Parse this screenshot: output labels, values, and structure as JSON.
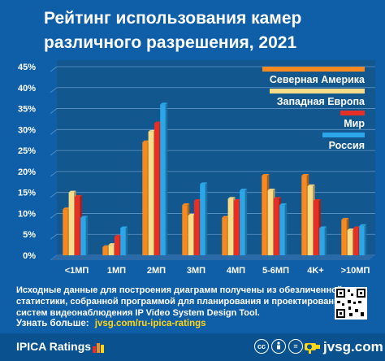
{
  "title": "Рейтинг использования камер различного разрешения, 2021",
  "chart_data": {
    "type": "bar",
    "title": "Рейтинг использования камер различного разрешения, 2021",
    "categories": [
      "<1МП",
      "1МП",
      "2МП",
      "3МП",
      "4МП",
      "5-6МП",
      "4K+",
      ">10МП"
    ],
    "series": [
      {
        "name": "Северная Америка",
        "color": "#f7891f",
        "values": [
          11,
          2,
          27,
          12,
          9,
          19,
          19,
          8.5
        ]
      },
      {
        "name": "Западная Европа",
        "color": "#f8dc88",
        "values": [
          15,
          2.5,
          29.5,
          9.5,
          13.5,
          15.5,
          16.5,
          6
        ]
      },
      {
        "name": "Мир",
        "color": "#e63025",
        "values": [
          14,
          4.5,
          31.5,
          13,
          13,
          13.5,
          13,
          6.5
        ]
      },
      {
        "name": "Россия",
        "color": "#2ba6e8",
        "values": [
          9,
          6.5,
          36,
          17,
          15.5,
          12,
          6.5,
          7
        ]
      }
    ],
    "ylim": [
      0,
      45
    ],
    "y_ticks": [
      "0%",
      "5%",
      "10%",
      "15%",
      "20%",
      "25%",
      "30%",
      "35%",
      "40%",
      "45%"
    ],
    "grid": true,
    "legend": "top-right"
  },
  "note": "Исходные данные для построения диаграмм получены из обезличенной статистики, собранной программой для планирования и проектирования систем видеонаблюдения IP Video System Design Tool.",
  "more_label": "Узнать больше:",
  "more_link": "jvsg.com/ru-ipica-ratings",
  "brand": "IPICA Ratings",
  "site": "jvsg.com",
  "license": "cc by nd"
}
